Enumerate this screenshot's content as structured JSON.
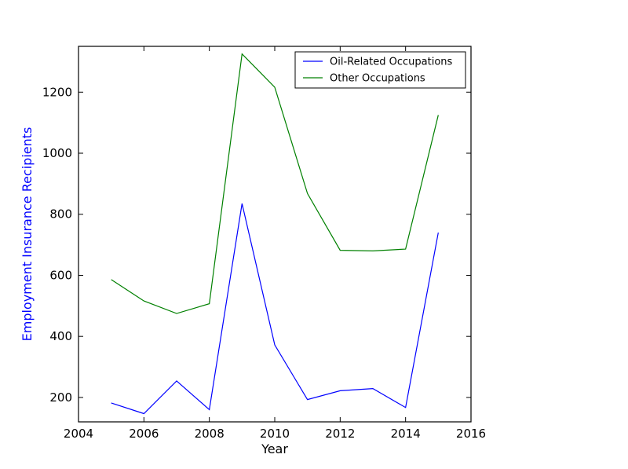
{
  "chart_data": {
    "type": "line",
    "title": "",
    "xlabel": "Year",
    "ylabel": "Employment Insurance Recipients",
    "xlim": [
      2004,
      2016
    ],
    "ylim": [
      120,
      1350
    ],
    "xticks": [
      2004,
      2006,
      2008,
      2010,
      2012,
      2014,
      2016
    ],
    "yticks": [
      200,
      400,
      600,
      800,
      1000,
      1200
    ],
    "x": [
      2005,
      2006,
      2007,
      2008,
      2009,
      2010,
      2011,
      2012,
      2013,
      2014,
      2015
    ],
    "series": [
      {
        "name": "Oil-Related Occupations",
        "color": "#0000ff",
        "values": [
          182,
          147,
          254,
          160,
          835,
          372,
          193,
          222,
          229,
          167,
          740
        ]
      },
      {
        "name": "Other Occupations",
        "color": "#008000",
        "values": [
          586,
          516,
          475,
          507,
          1325,
          1216,
          868,
          682,
          680,
          686,
          1125
        ]
      }
    ],
    "grid": false,
    "legend_position": "top-right",
    "ylabel_color": "#0000ff"
  }
}
